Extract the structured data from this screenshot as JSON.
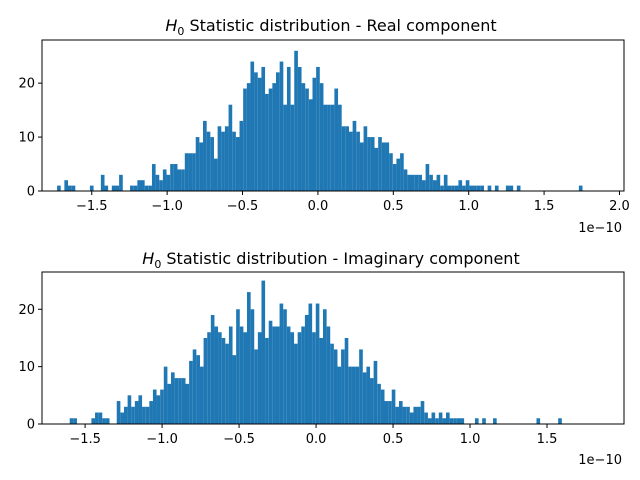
{
  "chart_data": [
    {
      "type": "bar",
      "title": "H0 Statistic distribution - Real component",
      "title_main": "H",
      "title_sub": "0",
      "title_rest": " Statistic distribution - Real component",
      "color": "#1f77b4",
      "xlim": [
        -1.83,
        2.03
      ],
      "ylim": [
        0,
        28
      ],
      "x_ticks": [
        -1.5,
        -1.0,
        -0.5,
        0.0,
        0.5,
        1.0,
        1.5,
        2.0
      ],
      "x_tick_labels": [
        "−1.5",
        "−1.0",
        "−0.5",
        "0.0",
        "0.5",
        "1.0",
        "1.5",
        "2.0"
      ],
      "y_ticks": [
        0,
        10,
        20
      ],
      "y_tick_labels": [
        "0",
        "10",
        "20"
      ],
      "x_offset_label": "1e−10",
      "x_unit_scale": "1e-10",
      "bin_start": -1.73,
      "bin_width": 0.0242,
      "values": [
        1,
        0,
        2,
        1,
        1,
        0,
        0,
        0,
        0,
        1,
        0,
        0,
        3,
        1,
        0,
        1,
        1,
        3,
        0,
        0,
        1,
        1,
        2,
        2,
        1,
        1,
        5,
        3,
        2,
        4,
        3,
        5,
        5,
        4,
        4,
        7,
        7,
        7,
        10,
        9,
        13,
        11,
        10,
        6,
        12,
        11,
        12,
        16,
        11,
        10,
        13,
        19,
        20,
        24,
        22,
        21,
        23,
        18,
        19,
        20,
        22,
        24,
        16,
        23,
        16,
        26,
        23,
        20,
        19,
        17,
        21,
        23,
        20,
        16,
        16,
        16,
        19,
        16,
        12,
        12,
        11,
        13,
        11,
        9,
        12,
        10,
        10,
        8,
        10,
        9,
        9,
        7,
        5,
        6,
        7,
        4,
        3,
        3,
        3,
        3,
        2,
        5,
        3,
        2,
        3,
        1,
        3,
        1,
        1,
        1,
        2,
        1,
        2,
        1,
        1,
        1,
        1,
        0,
        1,
        0,
        1,
        0,
        0,
        1,
        1,
        0,
        1,
        0,
        0,
        0,
        0,
        0,
        0,
        0,
        0,
        0,
        0,
        0,
        0,
        0,
        0,
        0,
        0,
        1
      ]
    },
    {
      "type": "bar",
      "title": "H0 Statistic distribution - Imaginary component",
      "title_main": "H",
      "title_sub": "0",
      "title_rest": " Statistic distribution - Imaginary component",
      "color": "#1f77b4",
      "xlim": [
        -1.78,
        2.0
      ],
      "ylim": [
        0,
        26.5
      ],
      "x_ticks": [
        -1.5,
        -1.0,
        -0.5,
        0.0,
        0.5,
        1.0,
        1.5
      ],
      "x_tick_labels": [
        "−1.5",
        "−1.0",
        "−0.5",
        "0.0",
        "0.5",
        "1.0",
        "1.5"
      ],
      "y_ticks": [
        0,
        10,
        20
      ],
      "y_tick_labels": [
        "0",
        "10",
        "20"
      ],
      "x_offset_label": "1e−10",
      "x_unit_scale": "1e-10",
      "bin_start": -1.6,
      "bin_width": 0.0235,
      "values": [
        1,
        1,
        0,
        0,
        0,
        0,
        1,
        2,
        2,
        1,
        1,
        0,
        0,
        4,
        2,
        3,
        5,
        3,
        4,
        5,
        3,
        3,
        4,
        6,
        5,
        6,
        10,
        7,
        9,
        8,
        8,
        8,
        7,
        11,
        13,
        12,
        10,
        15,
        16,
        19,
        17,
        16,
        15,
        14,
        17,
        12,
        20,
        17,
        16,
        23,
        20,
        13,
        16,
        25,
        15,
        18,
        17,
        17,
        21,
        20,
        17,
        16,
        14,
        16,
        17,
        19,
        21,
        16,
        21,
        15,
        20,
        17,
        14,
        13,
        10,
        13,
        15,
        10,
        10,
        10,
        13,
        9,
        10,
        8,
        11,
        7,
        6,
        4,
        4,
        6,
        3,
        4,
        3,
        3,
        2,
        3,
        3,
        4,
        2,
        1,
        2,
        1,
        2,
        1,
        2,
        1,
        1,
        1,
        1,
        0,
        0,
        0,
        1,
        0,
        1,
        0,
        0,
        1,
        0,
        0,
        0,
        0,
        0,
        0,
        0,
        0,
        0,
        0,
        0,
        1,
        0,
        0,
        0,
        0,
        0,
        1
      ]
    }
  ]
}
